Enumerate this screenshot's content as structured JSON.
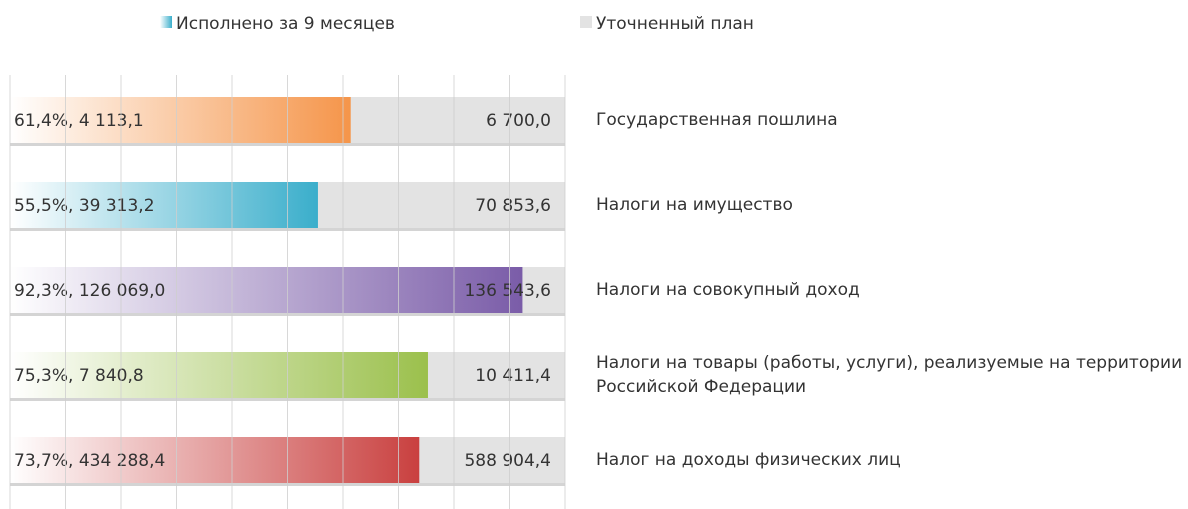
{
  "chart_data": {
    "type": "bar",
    "categories": [
      "Государственная пошлина",
      "Налоги на имущество",
      "Налоги на совокупный доход",
      "Налоги на товары (работы, услуги), реализуемые на территории Российской Федерации",
      "Налог на доходы физических лиц"
    ],
    "series": [
      {
        "name": "Исполнено за 9 месяцев",
        "color": [
          "#f5954a",
          "#3aaecb",
          "#7a5ca8",
          "#9bc04c",
          "#c9403f"
        ],
        "values": [
          4113.1,
          39313.2,
          126069.0,
          7840.8,
          434288.4
        ],
        "value_labels": [
          "61,4%, 4 113,1",
          "55,5%, 39 313,2",
          "92,3%, 126 069,0",
          "75,3%, 7 840,8",
          "73,7%, 434 288,4"
        ]
      },
      {
        "name": "Уточненный план",
        "color": "#e3e3e3",
        "values": [
          6700.0,
          70853.6,
          136543.6,
          10411.4,
          588904.4
        ],
        "value_labels": [
          "6 700,0",
          "70 853,6",
          "136 543,6",
          "10 411,4",
          "588 904,4"
        ]
      }
    ],
    "legend": "top",
    "grid": true
  }
}
